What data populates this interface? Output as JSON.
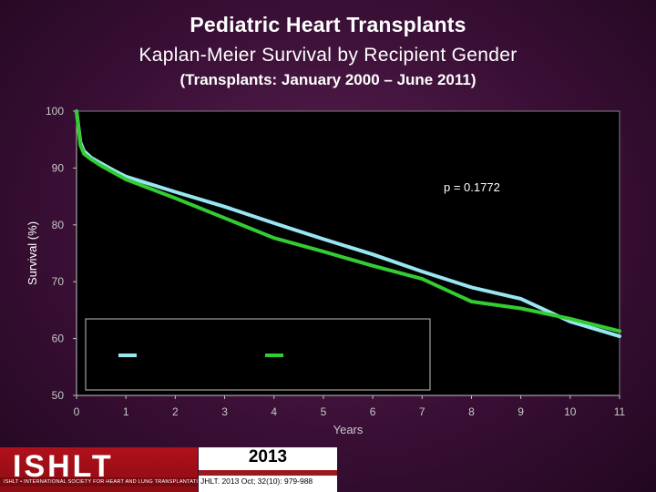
{
  "header": {
    "title": "Pediatric Heart Transplants",
    "subtitle": "Kaplan-Meier Survival by Recipient Gender",
    "subtitle2": "(Transplants: January 2000 – June 2011)"
  },
  "chart_data": {
    "type": "line",
    "title": "Kaplan-Meier Survival by Recipient Gender",
    "xlabel": "Years",
    "ylabel": "Survival (%)",
    "xlim": [
      0,
      11
    ],
    "ylim": [
      50,
      100
    ],
    "x_ticks": [
      "0",
      "1",
      "2",
      "3",
      "4",
      "5",
      "6",
      "7",
      "8",
      "9",
      "10",
      "11"
    ],
    "y_ticks": [
      "50",
      "60",
      "70",
      "80",
      "90",
      "100"
    ],
    "annotation": "p = 0.1772",
    "legend_placement": "bottom-left",
    "grid": false,
    "series": [
      {
        "name": "",
        "color": "#99e6f2",
        "x": [
          0,
          0.08,
          0.15,
          0.3,
          0.5,
          0.75,
          1,
          2,
          3,
          4,
          5,
          6,
          7,
          8,
          9,
          10,
          11
        ],
        "y": [
          100,
          94.5,
          93,
          91.8,
          90.8,
          89.6,
          88.5,
          85.8,
          83.2,
          80.3,
          77.5,
          74.8,
          71.8,
          69,
          67,
          63,
          60.4
        ]
      },
      {
        "name": "",
        "color": "#33cc33",
        "x": [
          0,
          0.08,
          0.15,
          0.3,
          0.5,
          0.75,
          1,
          2,
          3,
          4,
          5,
          6,
          7,
          8,
          9,
          10,
          11
        ],
        "y": [
          100,
          94,
          92.5,
          91.5,
          90.4,
          89.2,
          88,
          84.7,
          81.2,
          77.7,
          75.3,
          72.8,
          70.5,
          66.5,
          65.3,
          63.5,
          61.3
        ]
      }
    ]
  },
  "footer": {
    "logo_text": "ISHLT",
    "logo_tagline": "ISHLT • INTERNATIONAL SOCIETY FOR HEART AND LUNG TRANSPLANTATION",
    "year": "2013",
    "citation": "JHLT. 2013 Oct; 32(10): 979-988"
  }
}
